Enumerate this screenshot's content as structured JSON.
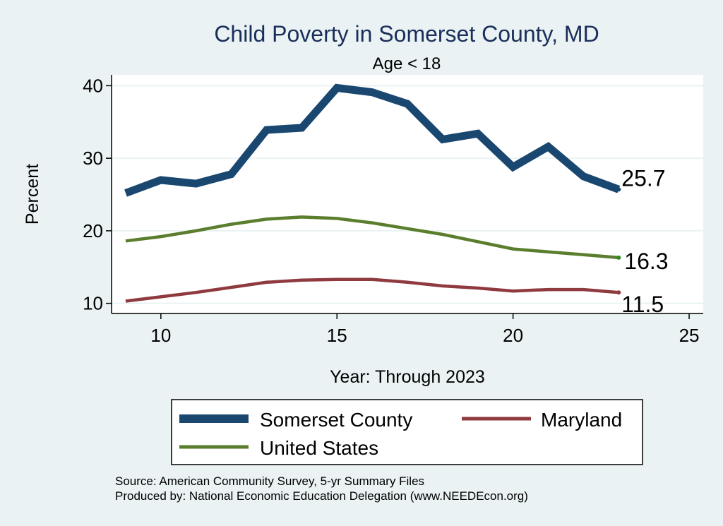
{
  "chart_data": {
    "type": "line",
    "title": "Child Poverty in Somerset County, MD",
    "subtitle": "Age < 18",
    "xlabel": "Year: Through 2023",
    "ylabel": "Percent",
    "xlim": [
      8.6,
      25.4
    ],
    "ylim": [
      8.6,
      41.5
    ],
    "xticks": [
      10,
      15,
      20,
      25
    ],
    "yticks": [
      10,
      20,
      30,
      40
    ],
    "grid": true,
    "legend_position": "bottom",
    "series": [
      {
        "name": "Somerset County",
        "color": "#1a4770",
        "x": [
          9,
          10,
          11,
          12,
          13,
          14,
          15,
          16,
          17,
          18,
          19,
          20,
          21,
          22,
          23
        ],
        "values": [
          25.2,
          27.0,
          26.5,
          27.8,
          33.9,
          34.2,
          39.7,
          39.1,
          37.5,
          32.6,
          33.4,
          28.8,
          31.6,
          27.5,
          25.7
        ],
        "end_label": "25.7"
      },
      {
        "name": "United States",
        "color": "#5a7e2e",
        "x": [
          9,
          10,
          11,
          12,
          13,
          14,
          15,
          16,
          17,
          18,
          19,
          20,
          21,
          22,
          23
        ],
        "values": [
          18.6,
          19.2,
          20.0,
          20.9,
          21.6,
          21.9,
          21.7,
          21.1,
          20.3,
          19.5,
          18.5,
          17.5,
          17.1,
          16.7,
          16.3
        ],
        "end_label": "16.3"
      },
      {
        "name": "Maryland",
        "color": "#8f3a3f",
        "x": [
          9,
          10,
          11,
          12,
          13,
          14,
          15,
          16,
          17,
          18,
          19,
          20,
          21,
          22,
          23
        ],
        "values": [
          10.3,
          10.9,
          11.5,
          12.2,
          12.9,
          13.2,
          13.3,
          13.3,
          12.9,
          12.4,
          12.1,
          11.7,
          11.9,
          11.9,
          11.5
        ],
        "end_label": "11.5"
      }
    ],
    "notes": [
      "Source: American Community Survey, 5-yr Summary Files",
      "Produced by: National Economic Education Delegation (www.NEEDEcon.org)"
    ]
  }
}
